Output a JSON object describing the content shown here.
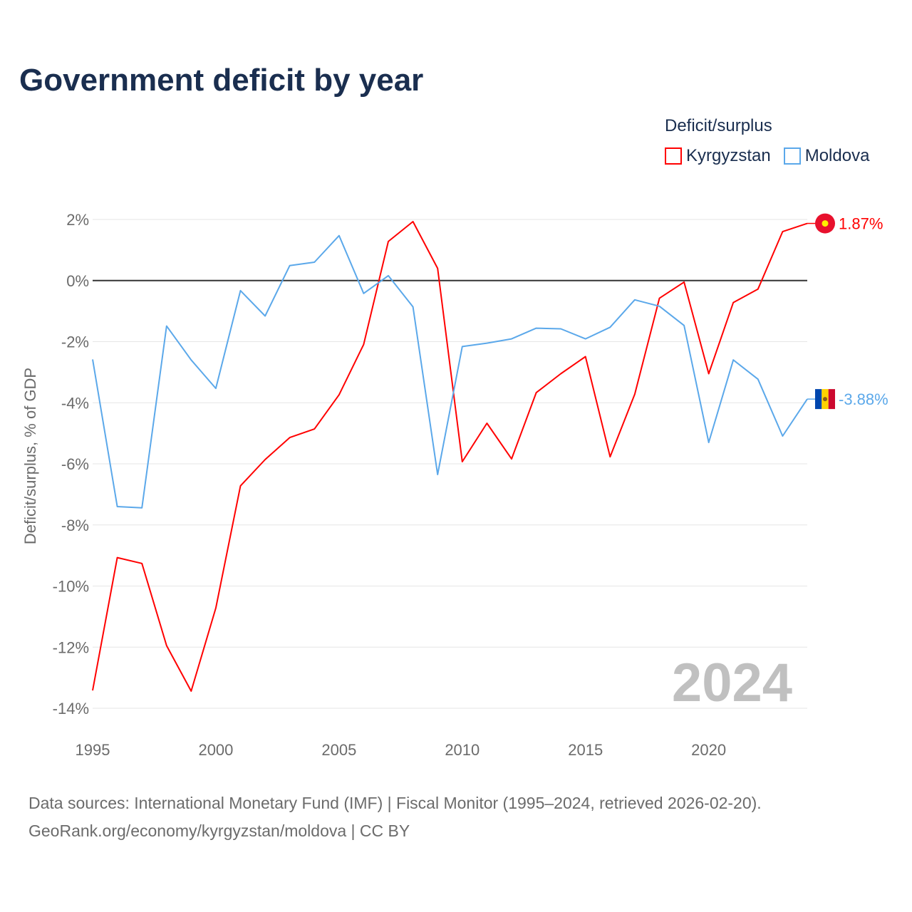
{
  "chart_data": {
    "type": "line",
    "title": "Government deficit by year",
    "xlabel": "",
    "ylabel": "Deficit/surplus, % of GDP",
    "ylim": [
      -14,
      2
    ],
    "xlim": [
      1995,
      2024
    ],
    "grid": true,
    "x_ticks": [
      "1995",
      "2000",
      "2005",
      "2010",
      "2015",
      "2020"
    ],
    "x_tick_values": [
      1995,
      2000,
      2005,
      2010,
      2015,
      2020
    ],
    "y_ticks": [
      "2%",
      "0%",
      "-2%",
      "-4%",
      "-6%",
      "-8%",
      "-10%",
      "-12%",
      "-14%"
    ],
    "y_tick_values": [
      2,
      0,
      -2,
      -4,
      -6,
      -8,
      -10,
      -12,
      -14
    ],
    "legend_title": "Deficit/surplus",
    "legend_position": "top-right",
    "year_watermark": "2024",
    "x": [
      1995,
      1996,
      1997,
      1998,
      1999,
      2000,
      2001,
      2002,
      2003,
      2004,
      2005,
      2006,
      2007,
      2008,
      2009,
      2010,
      2011,
      2012,
      2013,
      2014,
      2015,
      2016,
      2017,
      2018,
      2019,
      2020,
      2021,
      2022,
      2023,
      2024
    ],
    "series": [
      {
        "name": "Kyrgyzstan",
        "color": "#ff0000",
        "end_label": "1.87%",
        "values": [
          -13.42,
          -9.07,
          -9.26,
          -11.95,
          -13.44,
          -10.72,
          -6.72,
          -5.86,
          -5.14,
          -4.86,
          -3.74,
          -2.09,
          1.28,
          1.93,
          0.4,
          -5.93,
          -4.67,
          -5.84,
          -3.67,
          -3.05,
          -2.49,
          -5.77,
          -3.72,
          -0.58,
          -0.05,
          -3.05,
          -0.72,
          -0.28,
          1.6,
          1.87
        ]
      },
      {
        "name": "Moldova",
        "color": "#5ba8ea",
        "end_label": "-3.88%",
        "values": [
          -2.58,
          -7.4,
          -7.44,
          -1.49,
          -2.6,
          -3.53,
          -0.33,
          -1.16,
          0.49,
          0.6,
          1.47,
          -0.42,
          0.16,
          -0.86,
          -6.35,
          -2.16,
          -2.05,
          -1.91,
          -1.56,
          -1.58,
          -1.91,
          -1.53,
          -0.63,
          -0.84,
          -1.47,
          -5.3,
          -2.6,
          -3.23,
          -5.09,
          -3.88
        ]
      }
    ]
  },
  "footer": {
    "source": "Data sources: International Monetary Fund (IMF) | Fiscal Monitor (1995–2024, retrieved 2026-02-20).",
    "link": "GeoRank.org/economy/kyrgyzstan/moldova | CC BY"
  }
}
